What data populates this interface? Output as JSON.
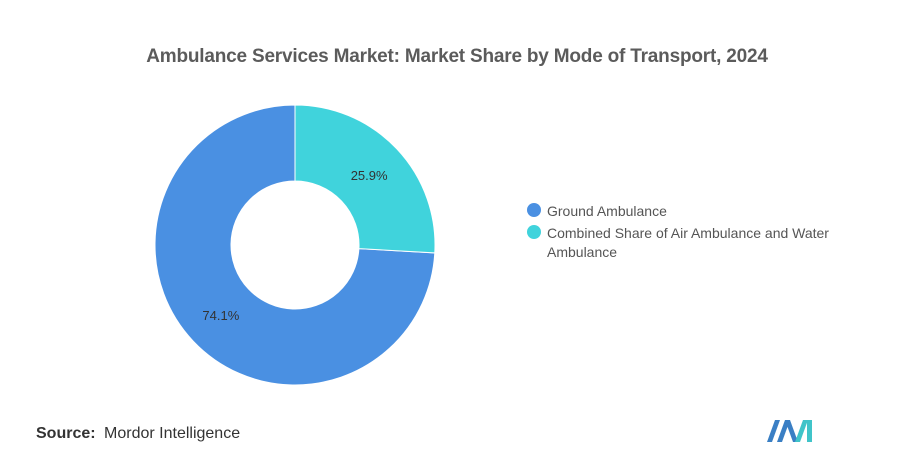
{
  "title": "Ambulance Services Market: Market Share by Mode of Transport, 2024",
  "chart_data": {
    "type": "pie",
    "variant": "donut",
    "title": "Ambulance Services Market: Market Share by Mode of Transport, 2024",
    "categories": [
      "Ground Ambulance",
      "Combined Share of Air Ambulance and Water Ambulance"
    ],
    "values": [
      74.1,
      25.9
    ],
    "labels": [
      "74.1%",
      "25.9%"
    ],
    "colors": [
      "#4a90e2",
      "#40d3dc"
    ],
    "legend_placement": "right"
  },
  "source": {
    "label": "Source:",
    "value": "Mordor Intelligence"
  },
  "logo": {
    "name": "mordor-intelligence-logo",
    "colors": [
      "#3a7fc4",
      "#40c4c9"
    ]
  }
}
